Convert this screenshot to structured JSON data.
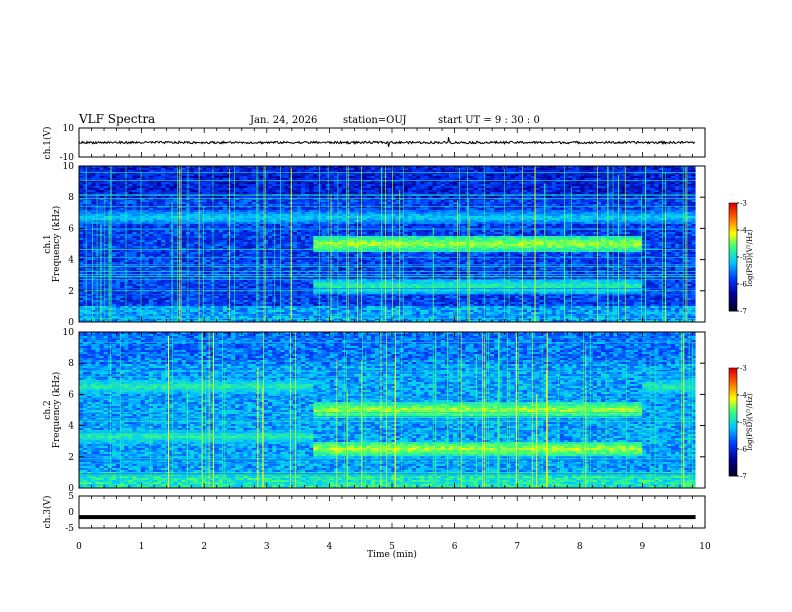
{
  "header": {
    "title": "VLF Spectra",
    "date": "Jan. 24, 2026",
    "station": "station=OUJ",
    "start": "start  UT =  9 : 30 : 0"
  },
  "colorbar_label": "log(PSD)(V²/Hz)",
  "chart_data": [
    {
      "type": "line",
      "name": "ch1-waveform",
      "ylabel": "ch.1(V)",
      "ylim": [
        -10,
        10
      ],
      "yticks": [
        "10",
        "-10"
      ],
      "baseline": 0,
      "color": "#000000"
    },
    {
      "type": "heatmap",
      "name": "ch1-spectrogram",
      "ylabel": "ch.1\nFrequency (kHz)",
      "ylim": [
        0,
        10
      ],
      "yticks": [
        "0",
        "2",
        "4",
        "6",
        "8",
        "10"
      ],
      "bands_khz": [
        {
          "freq": 5.0,
          "t_start": 3.75,
          "t_end": 9.0,
          "level": "high"
        },
        {
          "freq": 2.3,
          "t_start": 3.75,
          "t_end": 9.0,
          "level": "medium"
        },
        {
          "freq": 6.7,
          "t_start": 0.0,
          "t_end": 9.85,
          "level": "low"
        }
      ],
      "colorbar": {
        "range": [
          -7,
          -3
        ],
        "ticks": [
          "-3",
          "-4",
          "-5",
          "-6",
          "-7"
        ]
      }
    },
    {
      "type": "heatmap",
      "name": "ch2-spectrogram",
      "ylabel": "ch.2\nFrequency (kHz)",
      "ylim": [
        0,
        10
      ],
      "yticks": [
        "0",
        "2",
        "4",
        "6",
        "8",
        "10"
      ],
      "bands_khz": [
        {
          "freq": 5.0,
          "t_start": 3.75,
          "t_end": 9.0,
          "level": "high"
        },
        {
          "freq": 2.5,
          "t_start": 3.75,
          "t_end": 9.0,
          "level": "high"
        },
        {
          "freq": 6.5,
          "t_start": 0.0,
          "t_end": 3.75,
          "level": "medium"
        },
        {
          "freq": 3.3,
          "t_start": 0.0,
          "t_end": 3.75,
          "level": "medium"
        },
        {
          "freq": 6.5,
          "t_start": 9.0,
          "t_end": 9.85,
          "level": "medium"
        }
      ],
      "colorbar": {
        "range": [
          -7,
          -3
        ],
        "ticks": [
          "-3",
          "-4",
          "-5",
          "-6",
          "-7"
        ]
      }
    },
    {
      "type": "line",
      "name": "ch3-waveform",
      "ylabel": "ch.3(V)",
      "ylim": [
        -5,
        5
      ],
      "yticks": [
        "5",
        "0",
        "-5"
      ],
      "baseline": -1.6,
      "color": "#000000"
    }
  ],
  "x_axis": {
    "label": "Time (min)",
    "range": [
      0,
      10
    ],
    "data_end": 9.85,
    "ticks": [
      "0",
      "1",
      "2",
      "3",
      "4",
      "5",
      "6",
      "7",
      "8",
      "9",
      "10"
    ]
  }
}
